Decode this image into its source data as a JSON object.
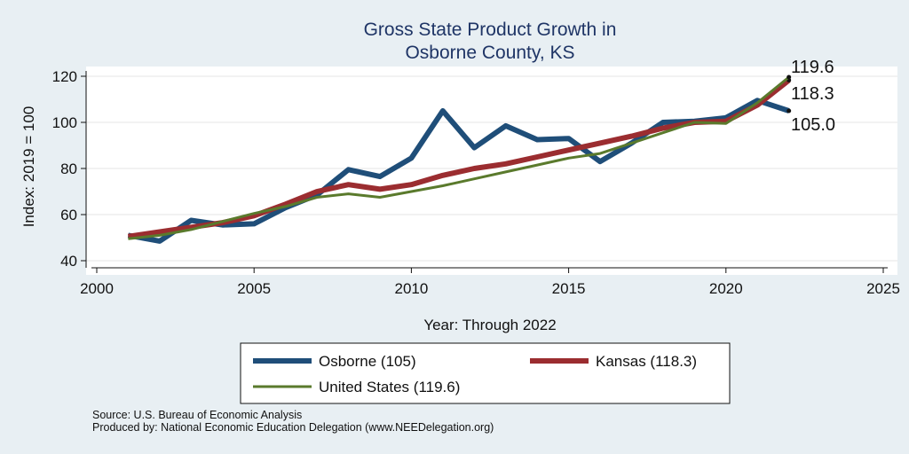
{
  "chart_data": {
    "type": "line",
    "title": [
      "Gross State Product Growth in",
      "Osborne County, KS"
    ],
    "xlabel": "Year: Through 2022",
    "ylabel": "Index: 2019 = 100",
    "xlim": [
      2000,
      2025
    ],
    "ylim": [
      40,
      120
    ],
    "xticks": [
      "2000",
      "2005",
      "2010",
      "2015",
      "2020",
      "2025"
    ],
    "yticks": [
      "40",
      "60",
      "80",
      "100",
      "120"
    ],
    "x": [
      2001,
      2002,
      2003,
      2004,
      2005,
      2006,
      2007,
      2008,
      2009,
      2010,
      2011,
      2012,
      2013,
      2014,
      2015,
      2016,
      2017,
      2018,
      2019,
      2020,
      2021,
      2022
    ],
    "series": [
      {
        "name": "Osborne (105)",
        "color": "#1f4e79",
        "values": [
          51.0,
          48.5,
          57.5,
          55.5,
          56.0,
          63.0,
          68.5,
          79.5,
          76.5,
          84.5,
          105.0,
          89.0,
          98.5,
          92.5,
          93.0,
          83.0,
          91.0,
          100.0,
          100.5,
          102.0,
          109.5,
          105.0
        ]
      },
      {
        "name": "Kansas (118.3)",
        "color": "#9b2d30",
        "values": [
          50.5,
          52.5,
          54.5,
          56.5,
          59.5,
          64.5,
          70.0,
          73.0,
          71.0,
          73.0,
          77.0,
          80.0,
          82.0,
          85.0,
          88.0,
          91.0,
          94.0,
          97.5,
          100.0,
          100.5,
          107.5,
          118.3
        ]
      },
      {
        "name": "United States (119.6)",
        "color": "#5a7a2c",
        "values": [
          49.5,
          51.0,
          53.5,
          57.0,
          60.5,
          63.5,
          67.5,
          69.0,
          67.5,
          70.0,
          72.5,
          75.5,
          78.5,
          81.5,
          84.5,
          86.5,
          91.0,
          95.5,
          100.0,
          99.5,
          108.5,
          119.6
        ]
      }
    ],
    "end_labels": [
      "119.6",
      "118.3",
      "105.0"
    ],
    "legend": "bottom, boxed, two columns",
    "grid": "horizontal"
  },
  "notes": {
    "source": "Source: U.S. Bureau of Economic Analysis",
    "produced": "Produced by: National Economic Education Delegation (www.NEEDelegation.org)"
  }
}
